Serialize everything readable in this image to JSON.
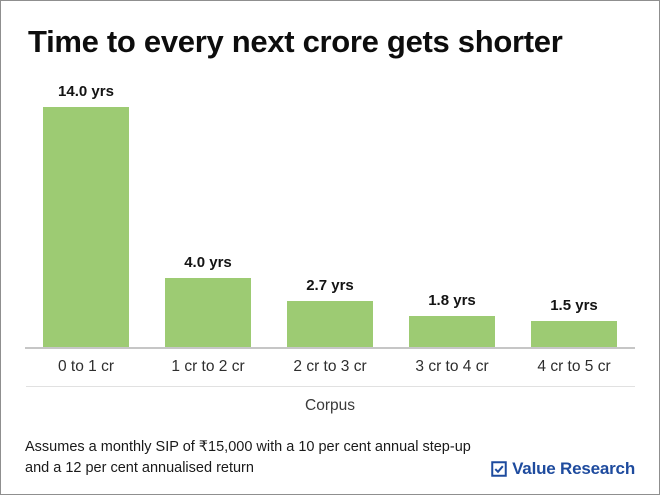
{
  "title": "Time to every next crore gets shorter",
  "chart_data": {
    "type": "bar",
    "categories": [
      "0 to 1 cr",
      "1 cr to 2 cr",
      "2 cr to 3 cr",
      "3 cr to 4 cr",
      "4 cr to 5 cr"
    ],
    "values": [
      14.0,
      4.0,
      2.7,
      1.8,
      1.5
    ],
    "value_labels": [
      "14.0 yrs",
      "4.0 yrs",
      "2.7 yrs",
      "1.8 yrs",
      "1.5 yrs"
    ],
    "title": "Time to every next crore gets shorter",
    "xlabel": "Corpus",
    "ylabel": "",
    "unit": "yrs",
    "ylim": [
      0,
      15.5
    ],
    "grid": false,
    "legend": "none",
    "bar_color": "#9dcb73",
    "axis_line_color": "#c6c6c6"
  },
  "footnote": {
    "line1": "Assumes a monthly SIP of ₹15,000 with a 10 per cent annual step-up",
    "line2": "and a 12 per cent annualised return"
  },
  "branding": {
    "logo_text": "Value Research",
    "logo_color": "#1e4b9e",
    "icon": "checkbox-check-icon"
  }
}
